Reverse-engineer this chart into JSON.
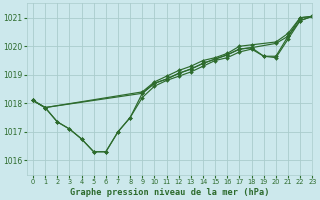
{
  "title": "Graphe pression niveau de la mer (hPa)",
  "bg_color": "#cce8ec",
  "grid_color": "#aacccc",
  "line_color": "#2d6b2d",
  "xlim": [
    -0.5,
    23
  ],
  "ylim": [
    1015.5,
    1021.5
  ],
  "yticks": [
    1016,
    1017,
    1018,
    1019,
    1020,
    1021
  ],
  "xticks": [
    0,
    1,
    2,
    3,
    4,
    5,
    6,
    7,
    8,
    9,
    10,
    11,
    12,
    13,
    14,
    15,
    16,
    17,
    18,
    19,
    20,
    21,
    22,
    23
  ],
  "series": [
    [
      1018.1,
      1017.85,
      null,
      null,
      null,
      null,
      null,
      null,
      null,
      1018.35,
      1018.7,
      1018.85,
      1019.0,
      1019.15,
      1019.35,
      1019.55,
      1019.65,
      1019.85,
      1019.95,
      null,
      1020.05,
      1020.3,
      1020.85,
      1021.05
    ],
    [
      1018.1,
      1017.85,
      null,
      null,
      null,
      null,
      null,
      null,
      null,
      1018.35,
      1018.7,
      1018.85,
      1019.1,
      1019.25,
      1019.45,
      1019.6,
      1019.75,
      1019.95,
      1020.05,
      null,
      1020.15,
      1020.45,
      1021.0,
      1021.05
    ],
    [
      1018.1,
      1017.85,
      1017.35,
      1017.1,
      1016.75,
      1016.55,
      1016.55,
      1017.05,
      1017.55,
      1018.35,
      1018.7,
      1018.85,
      1019.0,
      1019.15,
      1019.35,
      1019.55,
      1019.65,
      1019.85,
      1019.95,
      1019.65,
      1019.65,
      1020.35,
      1021.0,
      1021.05
    ],
    [
      1018.1,
      1017.85,
      1017.35,
      1017.1,
      1016.75,
      1016.55,
      1016.55,
      1017.05,
      1017.55,
      1018.2,
      1018.65,
      1018.8,
      1018.95,
      1019.1,
      1019.3,
      1019.5,
      1019.6,
      1019.8,
      1019.9,
      1019.65,
      1019.6,
      1020.25,
      1020.95,
      1021.05
    ]
  ],
  "series2": [
    [
      1018.1,
      1017.85,
      1017.35,
      1017.1,
      1016.75,
      1016.55,
      1016.55,
      1017.05,
      1017.55,
      1018.35,
      1018.7,
      1018.85,
      1019.0,
      1019.15,
      1019.35,
      1019.55,
      1019.65,
      1019.85,
      1019.95,
      1019.65,
      1019.65,
      1020.35,
      1021.0,
      1021.05
    ],
    [
      1018.1,
      1017.85,
      1017.35,
      1017.1,
      1016.75,
      1016.55,
      1016.55,
      1017.05,
      1017.55,
      1018.2,
      1018.65,
      1018.8,
      1018.95,
      1019.1,
      1019.3,
      1019.5,
      1019.6,
      1019.8,
      1019.9,
      1019.65,
      1019.6,
      1020.25,
      1020.95,
      1021.05
    ]
  ]
}
